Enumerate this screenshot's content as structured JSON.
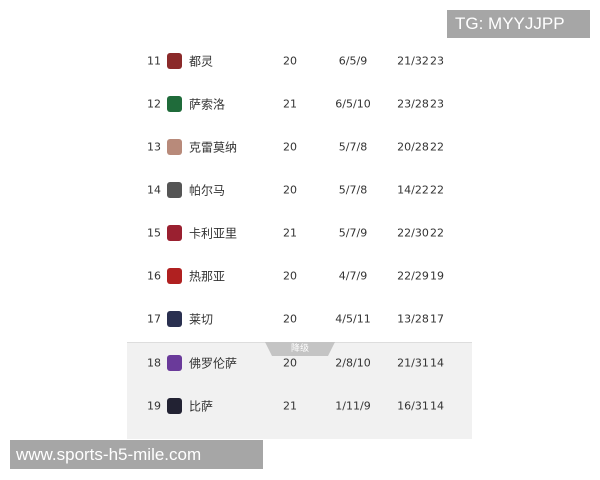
{
  "standings": [
    {
      "rank": "11",
      "team": "都灵",
      "played": "20",
      "wdl": "6/5/9",
      "goals": "21/32",
      "points": "23",
      "logo_color": "#8b2a2a"
    },
    {
      "rank": "12",
      "team": "萨索洛",
      "played": "21",
      "wdl": "6/5/10",
      "goals": "23/28",
      "points": "23",
      "logo_color": "#1f6b3a"
    },
    {
      "rank": "13",
      "team": "克雷莫纳",
      "played": "20",
      "wdl": "5/7/8",
      "goals": "20/28",
      "points": "22",
      "logo_color": "#b88a7a"
    },
    {
      "rank": "14",
      "team": "帕尔马",
      "played": "20",
      "wdl": "5/7/8",
      "goals": "14/22",
      "points": "22",
      "logo_color": "#555555"
    },
    {
      "rank": "15",
      "team": "卡利亚里",
      "played": "21",
      "wdl": "5/7/9",
      "goals": "22/30",
      "points": "22",
      "logo_color": "#9a2030"
    },
    {
      "rank": "16",
      "team": "热那亚",
      "played": "20",
      "wdl": "4/7/9",
      "goals": "22/29",
      "points": "19",
      "logo_color": "#b02020"
    },
    {
      "rank": "17",
      "team": "莱切",
      "played": "20",
      "wdl": "4/5/11",
      "goals": "13/28",
      "points": "17",
      "logo_color": "#2a3050"
    },
    {
      "rank": "18",
      "team": "佛罗伦萨",
      "played": "20",
      "wdl": "2/8/10",
      "goals": "21/31",
      "points": "14",
      "logo_color": "#6a3a9a"
    },
    {
      "rank": "19",
      "team": "比萨",
      "played": "21",
      "wdl": "1/11/9",
      "goals": "16/31",
      "points": "14",
      "logo_color": "#222233"
    }
  ],
  "relegation_label": "降级",
  "watermark_top": "TG: MYYJJPP",
  "watermark_bottom": "www.sports-h5-mile.com"
}
